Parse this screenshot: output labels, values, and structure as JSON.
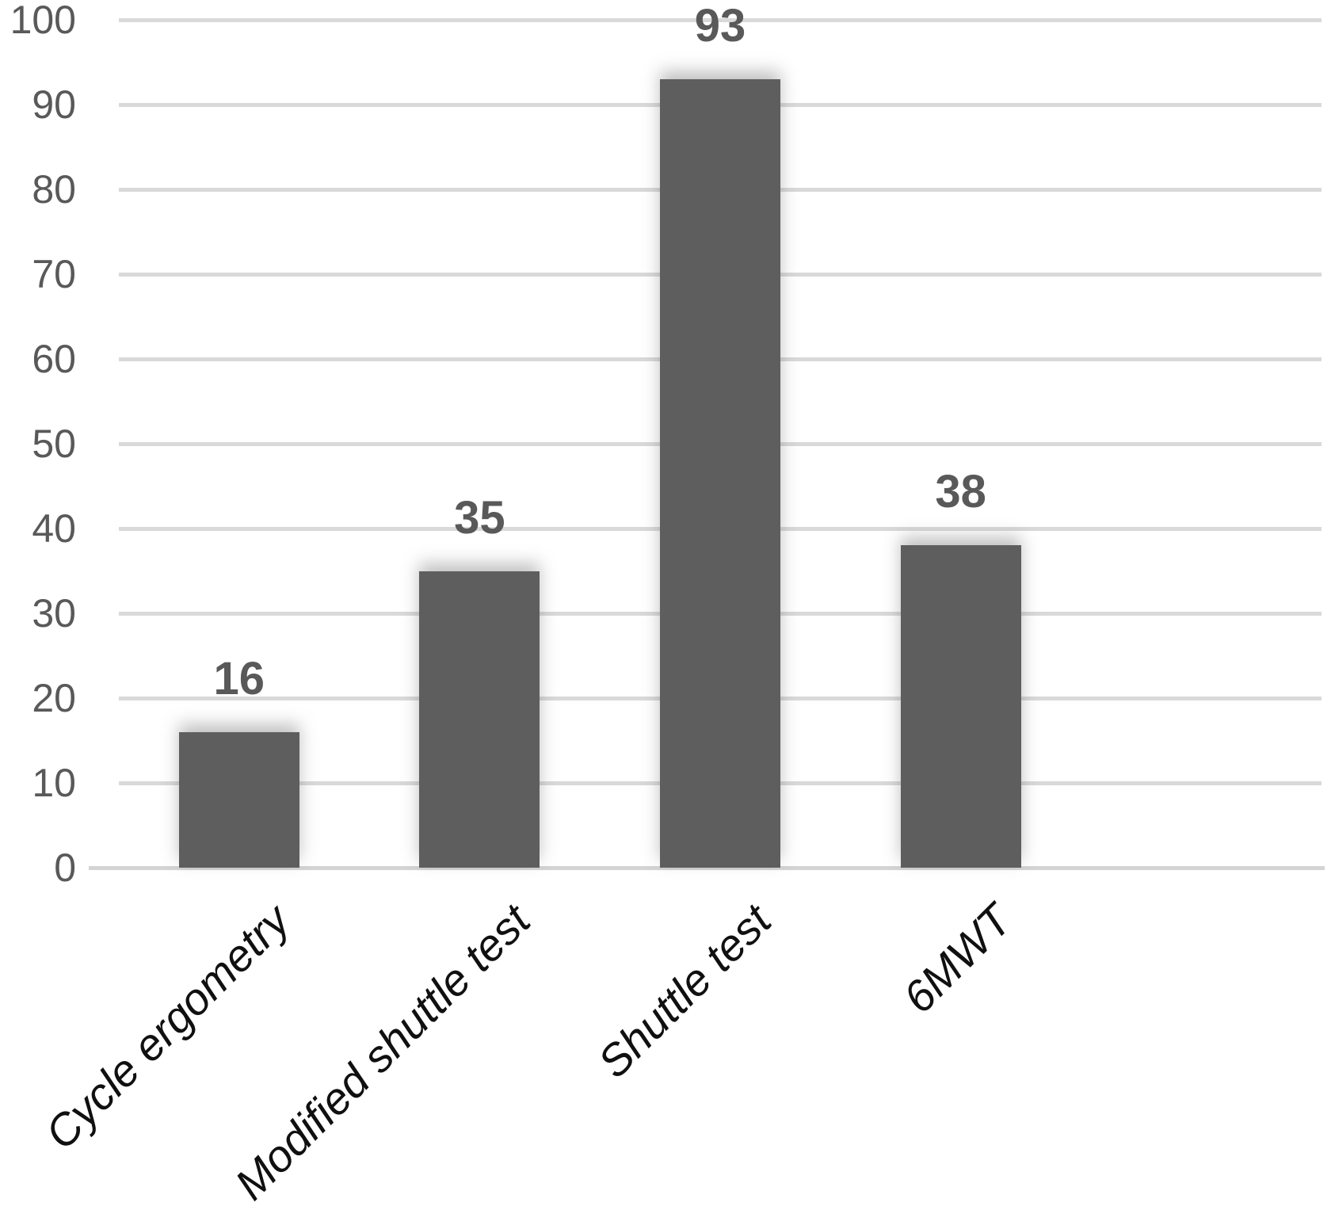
{
  "chart_data": {
    "type": "bar",
    "title": "",
    "xlabel": "",
    "ylabel": "",
    "categories": [
      "Cycle ergometry",
      "Modified shuttle test",
      "Shuttle test",
      "6MWT"
    ],
    "values": [
      16,
      35,
      93,
      38
    ],
    "bar_value_labels": [
      "16",
      "35",
      "93",
      "38"
    ],
    "ylim": [
      0,
      100
    ],
    "y_tick_step": 10,
    "y_tick_labels": [
      "0",
      "10",
      "20",
      "30",
      "40",
      "50",
      "60",
      "70",
      "80",
      "90",
      "100"
    ],
    "grid": true,
    "legend": false,
    "category_slots": 5,
    "colors": {
      "bar_fill": "#5e5e5e",
      "bar_value_label": "#595959",
      "y_tick_label": "#595959",
      "category_label": "#101010",
      "gridline": "#d9d9d9",
      "axis_line": "#d4d4d4",
      "background": "#ffffff"
    }
  }
}
